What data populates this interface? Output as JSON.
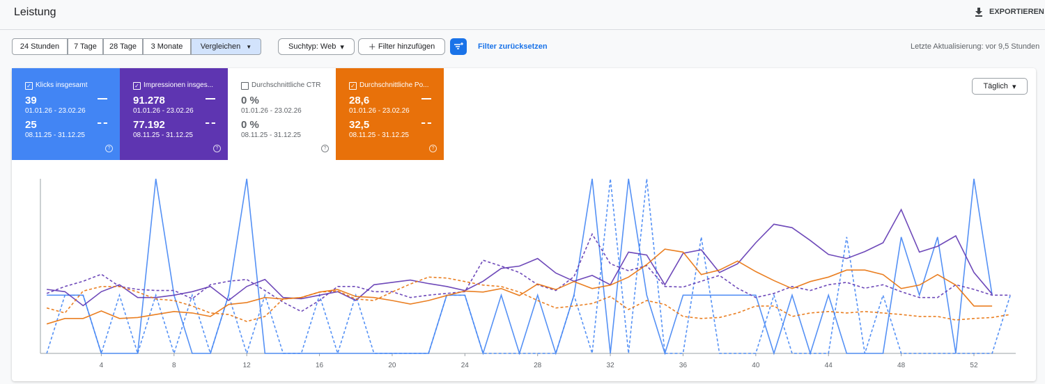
{
  "header": {
    "title": "Leistung",
    "export": "EXPORTIEREN"
  },
  "toolbar": {
    "ranges": [
      "24 Stunden",
      "7 Tage",
      "28 Tage",
      "3 Monate",
      "Vergleichen"
    ],
    "search_type": "Suchtyp: Web",
    "add_filter": "Filter hinzufügen",
    "reset": "Filter zurücksetzen",
    "updated": "Letzte Aktualisierung: vor 9,5 Stunden",
    "granularity": "Täglich"
  },
  "chart_data": {
    "type": "line",
    "period": "01.01.26 - 23.02.26",
    "previous_period": "08.11.25 - 31.12.25",
    "x": [
      1,
      2,
      3,
      4,
      5,
      6,
      7,
      8,
      9,
      10,
      11,
      12,
      13,
      14,
      15,
      16,
      17,
      18,
      19,
      20,
      21,
      22,
      23,
      24,
      25,
      26,
      27,
      28,
      29,
      30,
      31,
      32,
      33,
      34,
      35,
      36,
      37,
      38,
      39,
      40,
      41,
      42,
      43,
      44,
      45,
      46,
      47,
      48,
      49,
      50,
      51,
      52,
      53,
      54
    ],
    "xlim": [
      0.65,
      54.3
    ],
    "xticks": [
      4,
      8,
      12,
      16,
      20,
      24,
      28,
      32,
      36,
      40,
      44,
      48,
      52
    ],
    "series": [
      {
        "name": "Klicks insgesamt",
        "checked": true,
        "color": "#4285f4",
        "total": "39",
        "previous_total": "25",
        "ylim": [
          0,
          3
        ],
        "values": [
          1,
          1,
          1,
          0,
          0,
          0,
          3,
          1,
          0,
          0,
          1,
          3,
          0,
          0,
          0,
          0,
          0,
          0,
          0,
          0,
          0,
          0,
          1,
          1,
          0,
          1,
          0,
          1,
          0,
          1,
          3,
          0,
          3,
          1,
          0,
          1,
          1,
          1,
          1,
          1,
          0,
          1,
          0,
          1,
          0,
          0,
          0,
          2,
          1,
          2,
          0,
          3,
          1,
          null
        ],
        "previous_values": [
          0,
          1,
          1,
          0,
          1,
          0,
          1,
          0,
          1,
          0,
          1,
          0,
          1,
          0,
          0,
          1,
          0,
          1,
          0,
          0,
          0,
          0,
          1,
          1,
          0,
          0,
          0,
          0,
          0,
          1,
          0,
          3,
          0,
          3,
          0,
          0,
          2,
          0,
          0,
          0,
          1,
          0,
          0,
          0,
          2,
          0,
          1,
          0,
          0,
          0,
          0,
          0,
          0,
          1
        ]
      },
      {
        "name": "Impressionen insges...",
        "checked": true,
        "color": "#5e35b1",
        "total": "91.278",
        "previous_total": "77.192",
        "ylim": [
          0,
          3000
        ],
        "values": [
          1100,
          1060,
          820,
          1060,
          1180,
          960,
          960,
          1000,
          1060,
          1150,
          910,
          1150,
          1270,
          960,
          940,
          1000,
          1060,
          910,
          1180,
          1220,
          1260,
          1200,
          1150,
          1080,
          1240,
          1460,
          1500,
          1630,
          1380,
          1240,
          1340,
          1180,
          1740,
          1690,
          1180,
          1720,
          1780,
          1390,
          1540,
          1900,
          2220,
          2160,
          1940,
          1700,
          1630,
          1750,
          1900,
          2470,
          1740,
          1840,
          2020,
          1390,
          1020,
          null
        ],
        "previous_values": [
          1030,
          1150,
          1240,
          1360,
          1150,
          1100,
          1080,
          1080,
          940,
          1180,
          1240,
          1270,
          1080,
          880,
          720,
          910,
          1150,
          1150,
          1060,
          1060,
          960,
          1000,
          1030,
          1060,
          1600,
          1500,
          1390,
          1180,
          1080,
          1320,
          2050,
          1540,
          1420,
          1510,
          1150,
          1140,
          1240,
          1340,
          1120,
          960,
          1030,
          1150,
          1080,
          1180,
          1220,
          1120,
          1180,
          1060,
          960,
          960,
          1180,
          1100,
          1000,
          1000
        ]
      },
      {
        "name": "Durchschnittliche CTR",
        "checked": false,
        "color": "#ffffff",
        "total": "0 %",
        "previous_total": "0 %"
      },
      {
        "name": "Durchschnittliche Po...",
        "checked": true,
        "color": "#e8710a",
        "total": "28,6",
        "previous_total": "32,5",
        "ylim": [
          45,
          10
        ],
        "values": [
          39.1,
          38.0,
          38.0,
          36.5,
          38.0,
          37.8,
          37.2,
          36.6,
          36.9,
          37.6,
          35.2,
          34.8,
          33.8,
          34.1,
          33.8,
          32.7,
          32.2,
          33.6,
          33.8,
          34.4,
          35.1,
          34.4,
          33.4,
          32.5,
          32.7,
          32.0,
          33.4,
          31.1,
          32.2,
          30.6,
          32.0,
          31.3,
          29.7,
          27.2,
          24.1,
          24.7,
          29.2,
          28.3,
          26.5,
          28.6,
          30.4,
          32.0,
          30.6,
          29.7,
          28.3,
          28.3,
          29.2,
          32.0,
          31.3,
          29.2,
          31.3,
          35.5,
          35.5,
          null
        ],
        "previous_values": [
          35.9,
          36.9,
          32.5,
          31.6,
          31.6,
          32.7,
          34.1,
          34.4,
          35.5,
          36.9,
          37.2,
          38.6,
          37.6,
          34.1,
          33.8,
          32.7,
          32.5,
          34.1,
          34.4,
          32.7,
          31.1,
          29.7,
          29.9,
          30.6,
          31.3,
          31.6,
          32.7,
          34.4,
          35.9,
          35.5,
          35.0,
          33.6,
          36.2,
          34.4,
          35.2,
          37.6,
          38.0,
          37.8,
          36.9,
          35.5,
          35.5,
          37.6,
          36.9,
          36.6,
          36.9,
          36.6,
          36.9,
          37.2,
          37.6,
          37.6,
          38.3,
          38.0,
          37.8,
          37.2
        ]
      }
    ]
  }
}
